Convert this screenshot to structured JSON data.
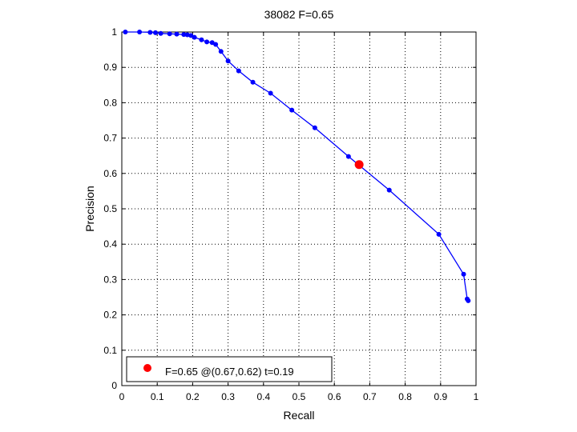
{
  "chart_data": {
    "type": "line",
    "title": "38082 F=0.65",
    "xlabel": "Recall",
    "ylabel": "Precision",
    "xlim": [
      0,
      1
    ],
    "ylim": [
      0,
      1
    ],
    "grid": true,
    "xticks": [
      "0",
      "0.1",
      "0.2",
      "0.3",
      "0.4",
      "0.5",
      "0.6",
      "0.7",
      "0.8",
      "0.9",
      "1"
    ],
    "yticks": [
      "0",
      "0.1",
      "0.2",
      "0.3",
      "0.4",
      "0.5",
      "0.6",
      "0.7",
      "0.8",
      "0.9",
      "1"
    ],
    "series": [
      {
        "color": "#0000ff",
        "marker": "circle",
        "x": [
          0.01,
          0.05,
          0.08,
          0.095,
          0.11,
          0.135,
          0.155,
          0.175,
          0.185,
          0.195,
          0.205,
          0.225,
          0.24,
          0.255,
          0.265,
          0.28,
          0.3,
          0.33,
          0.37,
          0.42,
          0.48,
          0.545,
          0.64,
          0.755,
          0.895,
          0.965,
          0.975,
          0.978
        ],
        "y": [
          1.0,
          1.0,
          0.999,
          0.998,
          0.996,
          0.995,
          0.994,
          0.993,
          0.992,
          0.99,
          0.985,
          0.978,
          0.972,
          0.97,
          0.965,
          0.945,
          0.918,
          0.89,
          0.858,
          0.827,
          0.779,
          0.729,
          0.648,
          0.553,
          0.428,
          0.315,
          0.245,
          0.24
        ]
      }
    ],
    "highlight": {
      "x": 0.67,
      "y": 0.625,
      "color": "#ff0000"
    },
    "legend": {
      "placement": "bottom-left",
      "text": "F=0.65 @(0.67,0.62) t=0.19"
    }
  }
}
